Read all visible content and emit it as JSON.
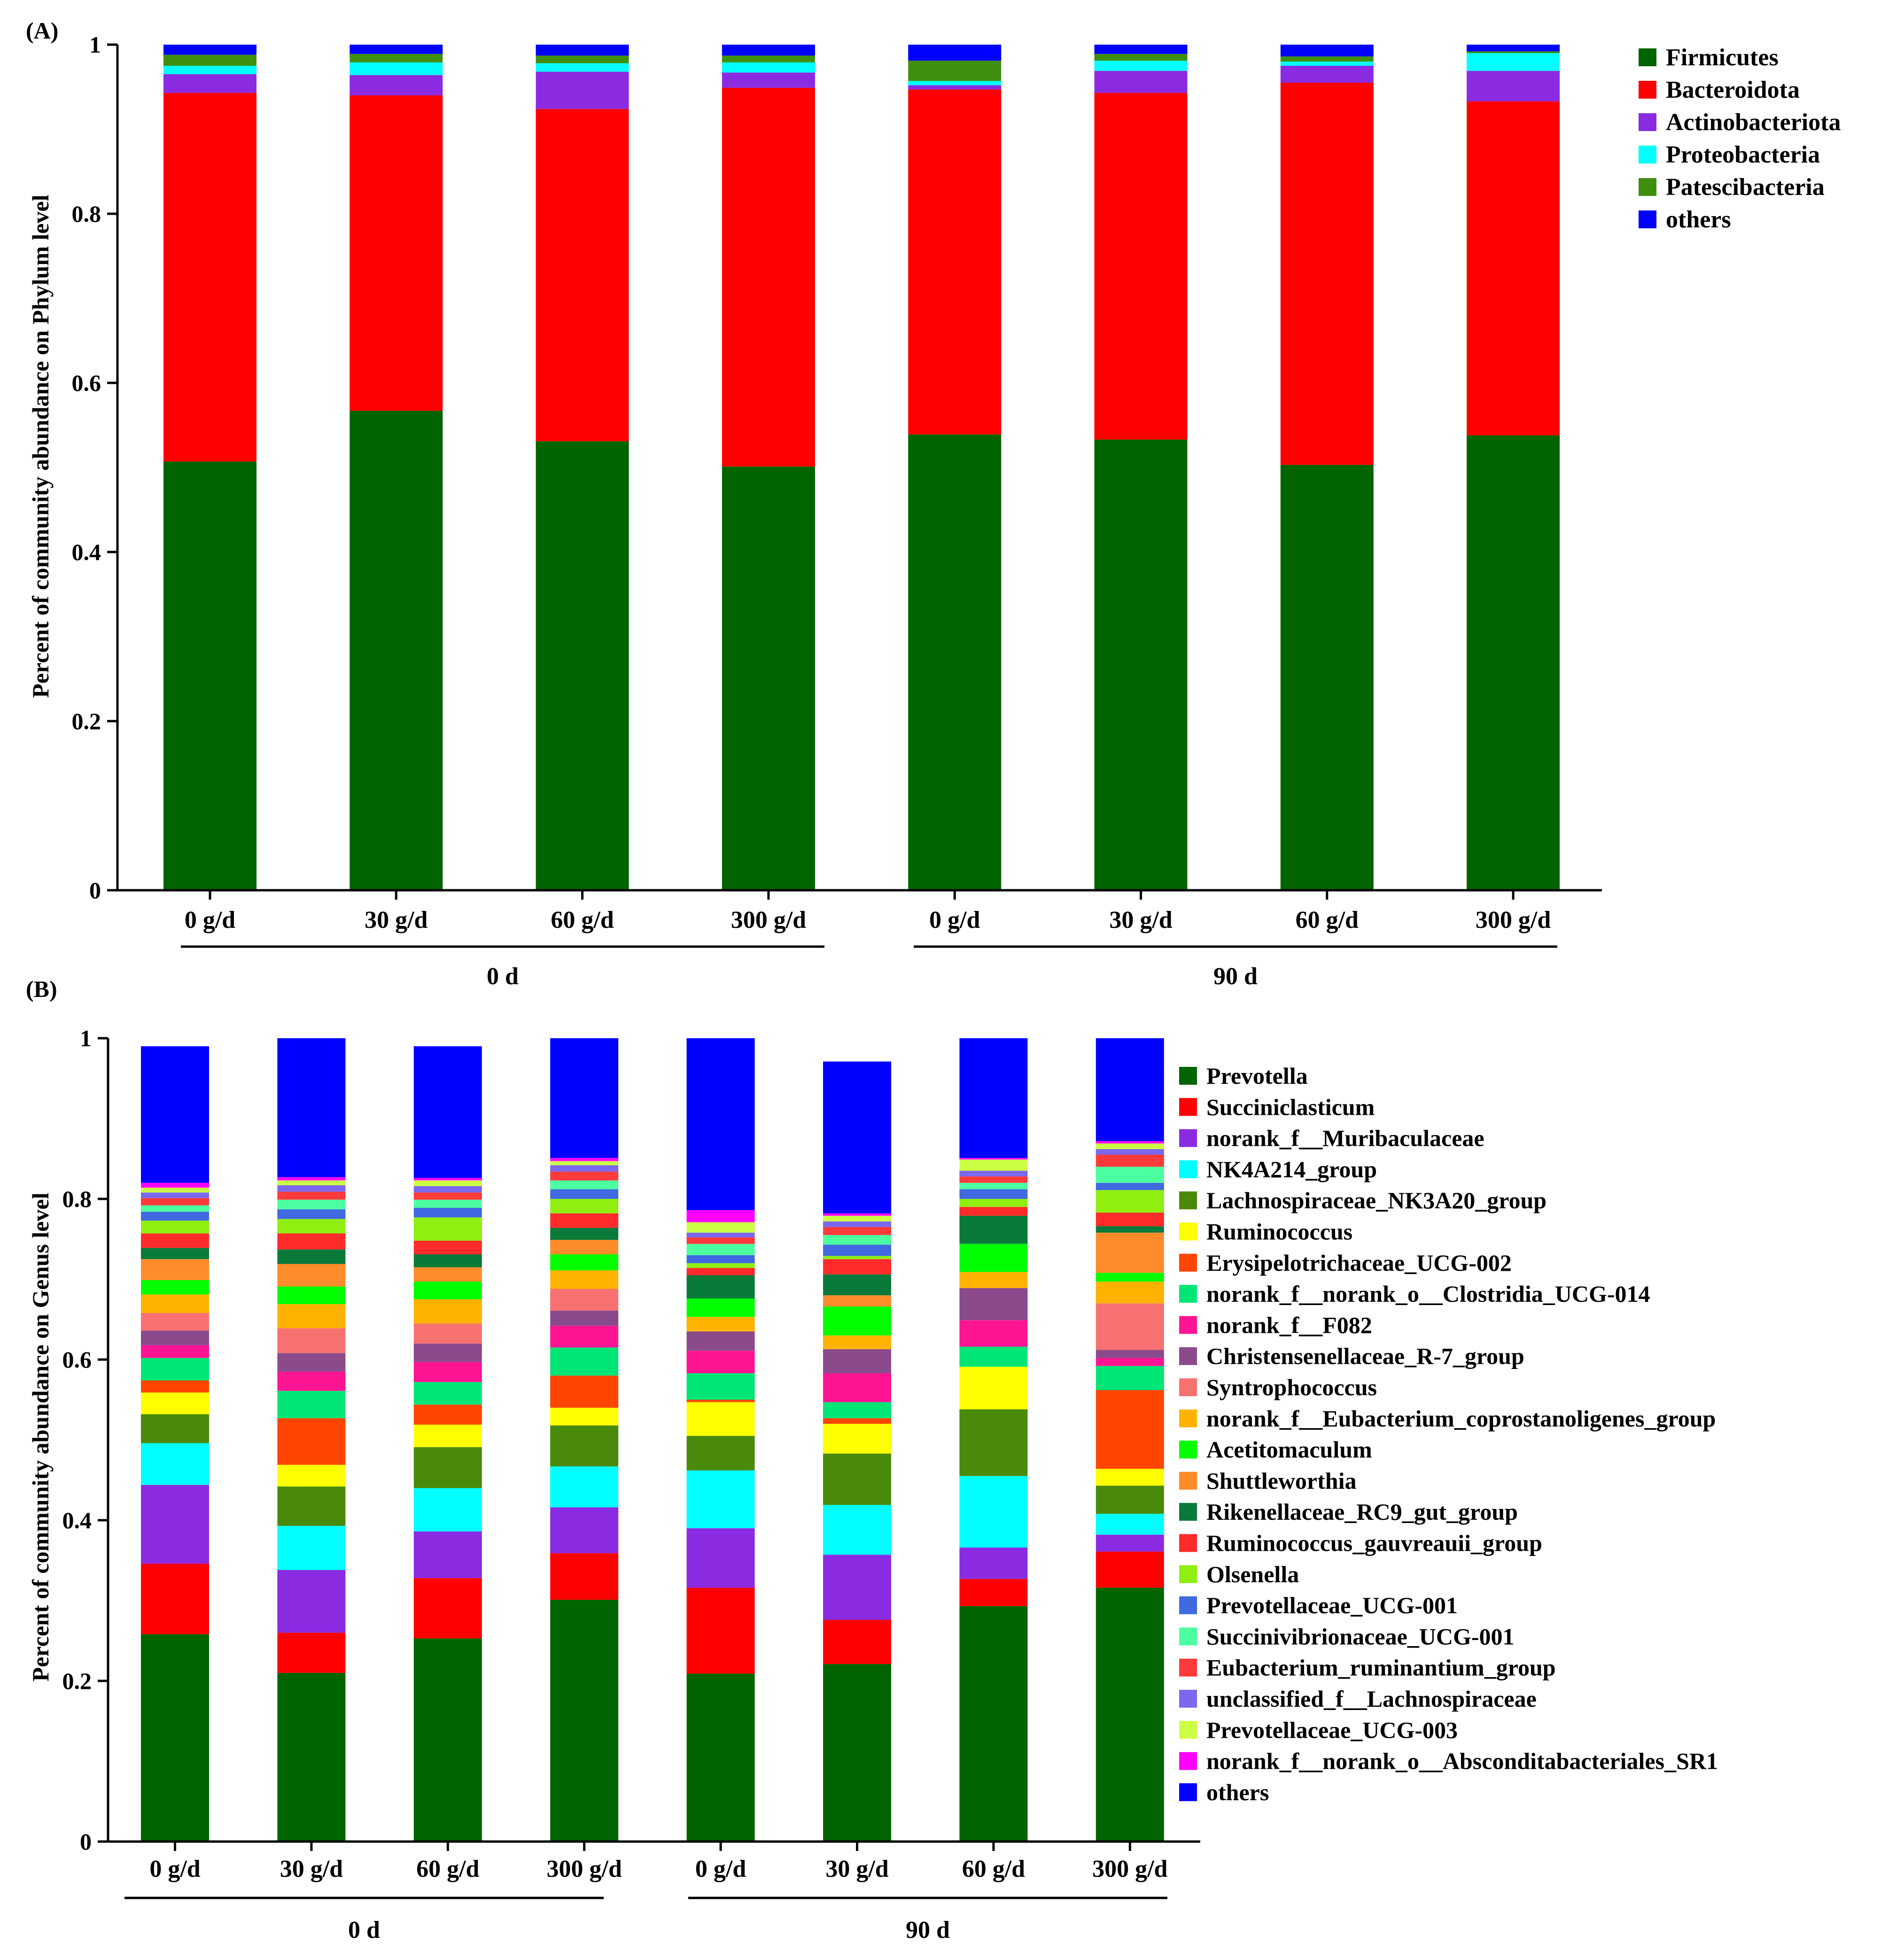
{
  "chart_data": [
    {
      "panel_label": "(A)",
      "type": "bar",
      "stacked": true,
      "ylabel": "Percent of community abundance on Phylum level",
      "ylim": [
        0,
        1
      ],
      "yticks": [
        "0",
        "0.2",
        "0.4",
        "0.6",
        "0.8",
        "1"
      ],
      "categories": [
        "0 g/d",
        "30 g/d",
        "60 g/d",
        "300 g/d",
        "0 g/d",
        "30 g/d",
        "60 g/d",
        "300 g/d"
      ],
      "groups": [
        {
          "label": "0 d",
          "start": 0,
          "end": 3
        },
        {
          "label": "90 d",
          "start": 4,
          "end": 7
        }
      ],
      "legend_position": "top-right",
      "series": [
        {
          "name": "Firmicutes",
          "color": "#006400",
          "values": [
            0.507,
            0.567,
            0.531,
            0.501,
            0.539,
            0.533,
            0.503,
            0.538
          ]
        },
        {
          "name": "Bacteroidota",
          "color": "#FF0000",
          "values": [
            0.436,
            0.373,
            0.393,
            0.448,
            0.408,
            0.41,
            0.452,
            0.395
          ]
        },
        {
          "name": "Actinobacteriota",
          "color": "#8A2BE2",
          "values": [
            0.022,
            0.024,
            0.044,
            0.018,
            0.005,
            0.026,
            0.02,
            0.036
          ]
        },
        {
          "name": "Proteobacteria",
          "color": "#00FFFF",
          "values": [
            0.01,
            0.015,
            0.01,
            0.012,
            0.005,
            0.012,
            0.005,
            0.021
          ]
        },
        {
          "name": "Patescibacteria",
          "color": "#3F8F0F",
          "values": [
            0.013,
            0.01,
            0.009,
            0.008,
            0.024,
            0.008,
            0.006,
            0.002
          ]
        },
        {
          "name": "others",
          "color": "#0000FF",
          "values": [
            0.012,
            0.011,
            0.013,
            0.013,
            0.019,
            0.011,
            0.014,
            0.008
          ]
        }
      ]
    },
    {
      "panel_label": "(B)",
      "type": "bar",
      "stacked": true,
      "ylabel": "Percent of community abundance on Genus level",
      "ylim": [
        0,
        1
      ],
      "yticks": [
        "0",
        "0.2",
        "0.4",
        "0.6",
        "0.8",
        "1"
      ],
      "categories": [
        "0 g/d",
        "30 g/d",
        "60 g/d",
        "300 g/d",
        "0 g/d",
        "30 g/d",
        "60 g/d",
        "300 g/d"
      ],
      "groups": [
        {
          "label": "0 d",
          "start": 0,
          "end": 3
        },
        {
          "label": "90 d",
          "start": 4,
          "end": 7
        }
      ],
      "legend_position": "right",
      "series": [
        {
          "name": "Prevotella",
          "color": "#006400",
          "values": [
            0.258,
            0.21,
            0.253,
            0.301,
            0.209,
            0.221,
            0.293,
            0.316
          ]
        },
        {
          "name": "Succiniclasticum",
          "color": "#FF0000",
          "values": [
            0.088,
            0.05,
            0.075,
            0.058,
            0.107,
            0.055,
            0.034,
            0.045
          ]
        },
        {
          "name": "norank_f__Muribaculaceae",
          "color": "#8A2BE2",
          "values": [
            0.098,
            0.078,
            0.058,
            0.057,
            0.074,
            0.081,
            0.039,
            0.021
          ]
        },
        {
          "name": "NK4A214_group",
          "color": "#00FFFF",
          "values": [
            0.052,
            0.055,
            0.054,
            0.051,
            0.072,
            0.062,
            0.089,
            0.026
          ]
        },
        {
          "name": "Lachnospiraceae_NK3A20_group",
          "color": "#4A8A0A",
          "values": [
            0.036,
            0.049,
            0.051,
            0.051,
            0.043,
            0.064,
            0.083,
            0.035
          ]
        },
        {
          "name": "Ruminococcus",
          "color": "#FFFF00",
          "values": [
            0.027,
            0.027,
            0.028,
            0.022,
            0.042,
            0.037,
            0.053,
            0.021
          ]
        },
        {
          "name": "Erysipelotrichaceae_UCG-002",
          "color": "#FF4500",
          "values": [
            0.015,
            0.058,
            0.025,
            0.04,
            0.003,
            0.007,
            0.0,
            0.098
          ]
        },
        {
          "name": "norank_f__norank_o__Clostridia_UCG-014",
          "color": "#00E676",
          "values": [
            0.028,
            0.034,
            0.028,
            0.035,
            0.033,
            0.02,
            0.025,
            0.03
          ]
        },
        {
          "name": "norank_f__F082",
          "color": "#FF1493",
          "values": [
            0.016,
            0.024,
            0.025,
            0.027,
            0.028,
            0.036,
            0.033,
            0.01
          ]
        },
        {
          "name": "Christensenellaceae_R-7_group",
          "color": "#8B4A8B",
          "values": [
            0.018,
            0.023,
            0.023,
            0.019,
            0.024,
            0.03,
            0.04,
            0.01
          ]
        },
        {
          "name": "Syntrophococcus",
          "color": "#F87171",
          "values": [
            0.022,
            0.031,
            0.025,
            0.027,
            0.0,
            0.0,
            0.0,
            0.058
          ]
        },
        {
          "name": "norank_f__Eubacterium_coprostanoligenes_group",
          "color": "#FFB300",
          "values": [
            0.023,
            0.03,
            0.03,
            0.023,
            0.018,
            0.017,
            0.02,
            0.027
          ]
        },
        {
          "name": "Acetitomaculum",
          "color": "#00FF00",
          "values": [
            0.018,
            0.022,
            0.022,
            0.02,
            0.023,
            0.036,
            0.035,
            0.011
          ]
        },
        {
          "name": "Shuttleworthia",
          "color": "#FF8C2A",
          "values": [
            0.026,
            0.028,
            0.018,
            0.018,
            0.0,
            0.014,
            0.0,
            0.05
          ]
        },
        {
          "name": "Rikenellaceae_RC9_gut_group",
          "color": "#0A7A3A",
          "values": [
            0.014,
            0.018,
            0.016,
            0.015,
            0.029,
            0.026,
            0.035,
            0.008
          ]
        },
        {
          "name": "Ruminococcus_gauvreauii_group",
          "color": "#FF2A2A",
          "values": [
            0.018,
            0.02,
            0.017,
            0.018,
            0.009,
            0.019,
            0.011,
            0.017
          ]
        },
        {
          "name": "Olsenella",
          "color": "#90EE10",
          "values": [
            0.016,
            0.018,
            0.029,
            0.018,
            0.006,
            0.004,
            0.01,
            0.028
          ]
        },
        {
          "name": "Prevotellaceae_UCG-001",
          "color": "#4169E1",
          "values": [
            0.011,
            0.012,
            0.012,
            0.012,
            0.01,
            0.014,
            0.012,
            0.009
          ]
        },
        {
          "name": "Succinivibrionaceae_UCG-001",
          "color": "#4CFFA0",
          "values": [
            0.008,
            0.012,
            0.01,
            0.011,
            0.014,
            0.012,
            0.008,
            0.02
          ]
        },
        {
          "name": "Eubacterium_ruminantium_group",
          "color": "#FF3A3A",
          "values": [
            0.009,
            0.01,
            0.009,
            0.011,
            0.008,
            0.01,
            0.008,
            0.015
          ]
        },
        {
          "name": "unclassified_f__Lachnospiraceae",
          "color": "#7B68EE",
          "values": [
            0.007,
            0.008,
            0.008,
            0.008,
            0.006,
            0.007,
            0.007,
            0.007
          ]
        },
        {
          "name": "Prevotellaceae_UCG-003",
          "color": "#CCFF44",
          "values": [
            0.006,
            0.006,
            0.007,
            0.005,
            0.013,
            0.007,
            0.014,
            0.007
          ]
        },
        {
          "name": "norank_f__norank_o__Absconditabacteriales_SR1",
          "color": "#FF00FF",
          "values": [
            0.006,
            0.004,
            0.003,
            0.004,
            0.015,
            0.003,
            0.002,
            0.003
          ]
        },
        {
          "name": "others",
          "color": "#0000FF",
          "values": [
            0.17,
            0.176,
            0.164,
            0.158,
            0.218,
            0.189,
            0.165,
            0.133
          ]
        }
      ]
    }
  ]
}
